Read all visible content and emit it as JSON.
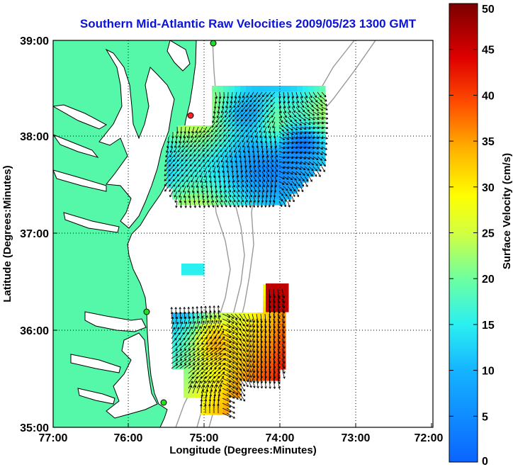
{
  "title": "Southern Mid-Atlantic Raw Velocities 2009/05/23 1300 GMT",
  "axes": {
    "xlabel": "Longitude (Degrees:Minutes)",
    "ylabel": "Latitude (Degrees:Minutes)",
    "x_ticks": [
      "77:00",
      "76:00",
      "75:00",
      "74:00",
      "73:00",
      "72:00"
    ],
    "y_ticks": [
      "39:00",
      "38:00",
      "37:00",
      "36:00",
      "35:00"
    ],
    "xlim": [
      -77,
      -72
    ],
    "ylim": [
      35,
      39
    ],
    "grid": "dotted"
  },
  "colorbar": {
    "label": "Surface Velocity (cm/s)",
    "ticks": [
      "0",
      "5",
      "10",
      "15",
      "20",
      "25",
      "30",
      "35",
      "40",
      "45",
      "50"
    ],
    "range": [
      0,
      50
    ]
  },
  "colors": {
    "land": "#55f7a8",
    "coast": "#000000",
    "bathymetry": "#999999",
    "title": "#0b14d6",
    "station": "#22dd22",
    "station_red": "#ff2222"
  },
  "icons": [
    "hf-radar-station-marker",
    "velocity-arrow"
  ]
}
